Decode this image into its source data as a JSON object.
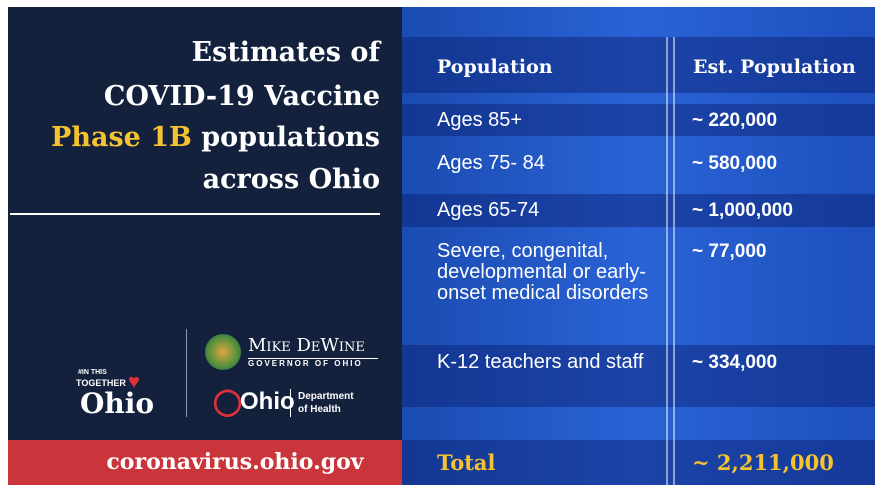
{
  "title": {
    "line1": "Estimates of",
    "line2": "COVID-19 Vaccine",
    "highlight": "Phase 1B",
    "line3": "populations",
    "line4": "across Ohio"
  },
  "logos": {
    "together_small": "#IN THIS",
    "together": "TOGETHER",
    "together_ohio": "Ohio",
    "governor_name": "Mike DeWine",
    "governor_title": "GOVERNOR OF OHIO",
    "dept_ohio": "Ohio",
    "dept_name": "Department",
    "dept_sub": "of Health"
  },
  "footer": {
    "url": "coronavirus.ohio.gov"
  },
  "table": {
    "header": [
      "Population",
      "Est. Population"
    ],
    "rows": [
      [
        "Ages 85+",
        "~ 220,000"
      ],
      [
        "Ages 75- 84",
        "~ 580,000"
      ],
      [
        "Ages 65-74",
        "~ 1,000,000"
      ],
      [
        "Severe, congenital, developmental or early-onset medical disorders",
        "~ 77,000"
      ],
      [
        "K-12 teachers and staff",
        "~ 334,000"
      ]
    ],
    "total": [
      "Total",
      "~ 2,211,000"
    ]
  }
}
